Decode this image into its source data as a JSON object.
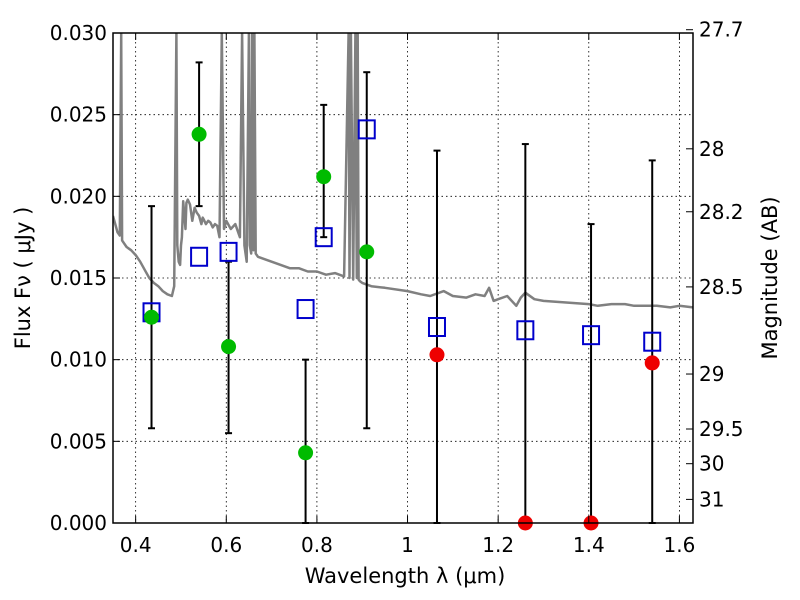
{
  "chart_data": {
    "type": "scatter",
    "title": "",
    "xlabel": "Wavelength  λ (μm)",
    "ylabel": "Flux  Fν  ( μJy )",
    "y2label": "Magnitude (AB)",
    "xlim": [
      0.35,
      1.63
    ],
    "ylim": [
      0.0,
      0.03
    ],
    "grid": true,
    "x_ticks": [
      {
        "value": 0.4,
        "label": "0.4"
      },
      {
        "value": 0.6,
        "label": "0.6"
      },
      {
        "value": 0.8,
        "label": "0.8"
      },
      {
        "value": 1.0,
        "label": "1"
      },
      {
        "value": 1.2,
        "label": "1.2"
      },
      {
        "value": 1.4,
        "label": "1.4"
      },
      {
        "value": 1.6,
        "label": "1.6"
      }
    ],
    "y_ticks": [
      {
        "value": 0.0,
        "label": "0.000"
      },
      {
        "value": 0.005,
        "label": "0.005"
      },
      {
        "value": 0.01,
        "label": "0.010"
      },
      {
        "value": 0.015,
        "label": "0.015"
      },
      {
        "value": 0.02,
        "label": "0.020"
      },
      {
        "value": 0.025,
        "label": "0.025"
      },
      {
        "value": 0.03,
        "label": "0.030"
      }
    ],
    "y2_ticks": [
      {
        "value": 27.7,
        "label": "27.7"
      },
      {
        "value": 28.0,
        "label": "28"
      },
      {
        "value": 28.2,
        "label": "28.2"
      },
      {
        "value": 28.5,
        "label": "28.5"
      },
      {
        "value": 29.0,
        "label": "29"
      },
      {
        "value": 29.5,
        "label": "29.5"
      },
      {
        "value": 30.0,
        "label": "30"
      },
      {
        "value": 31.0,
        "label": "31"
      }
    ],
    "series": [
      {
        "name": "model_spectrum",
        "kind": "line",
        "color": "#808080",
        "x": [
          0.35,
          0.36,
          0.365,
          0.368,
          0.37,
          0.375,
          0.38,
          0.39,
          0.4,
          0.41,
          0.42,
          0.43,
          0.44,
          0.45,
          0.46,
          0.47,
          0.48,
          0.485,
          0.49,
          0.492,
          0.495,
          0.498,
          0.5,
          0.502,
          0.505,
          0.51,
          0.512,
          0.515,
          0.52,
          0.525,
          0.53,
          0.535,
          0.54,
          0.545,
          0.548,
          0.55,
          0.555,
          0.56,
          0.565,
          0.57,
          0.575,
          0.58,
          0.585,
          0.59,
          0.595,
          0.6,
          0.61,
          0.62,
          0.63,
          0.635,
          0.64,
          0.645,
          0.65,
          0.652,
          0.655,
          0.657,
          0.66,
          0.662,
          0.665,
          0.67,
          0.68,
          0.7,
          0.72,
          0.74,
          0.76,
          0.78,
          0.8,
          0.82,
          0.84,
          0.86,
          0.87,
          0.872,
          0.875,
          0.88,
          0.885,
          0.888,
          0.89,
          0.892,
          0.895,
          0.9,
          0.92,
          0.95,
          1.0,
          1.03,
          1.05,
          1.08,
          1.1,
          1.13,
          1.15,
          1.17,
          1.18,
          1.19,
          1.2,
          1.22,
          1.24,
          1.25,
          1.26,
          1.28,
          1.3,
          1.35,
          1.4,
          1.42,
          1.45,
          1.48,
          1.5,
          1.55,
          1.58,
          1.6,
          1.63
        ],
        "y": [
          0.0188,
          0.0178,
          0.0176,
          0.03,
          0.0173,
          0.0171,
          0.0169,
          0.0167,
          0.0164,
          0.016,
          0.0155,
          0.015,
          0.0147,
          0.0145,
          0.0142,
          0.014,
          0.0139,
          0.0145,
          0.03,
          0.017,
          0.016,
          0.0158,
          0.017,
          0.0175,
          0.0197,
          0.018,
          0.0196,
          0.0198,
          0.0195,
          0.0185,
          0.0193,
          0.019,
          0.0188,
          0.0183,
          0.0187,
          0.0186,
          0.0183,
          0.0185,
          0.0184,
          0.0181,
          0.0183,
          0.0182,
          0.0175,
          0.03,
          0.018,
          0.0185,
          0.018,
          0.0183,
          0.0175,
          0.03,
          0.017,
          0.016,
          0.03,
          0.017,
          0.0165,
          0.03,
          0.0167,
          0.03,
          0.0165,
          0.0163,
          0.0162,
          0.016,
          0.0158,
          0.0156,
          0.0156,
          0.0154,
          0.0154,
          0.0152,
          0.0153,
          0.0151,
          0.03,
          0.015,
          0.03,
          0.0149,
          0.03,
          0.015,
          0.03,
          0.0149,
          0.0148,
          0.0147,
          0.0145,
          0.0144,
          0.0142,
          0.014,
          0.0139,
          0.0142,
          0.0139,
          0.0138,
          0.014,
          0.0139,
          0.0144,
          0.0136,
          0.0137,
          0.0139,
          0.0133,
          0.0138,
          0.0141,
          0.0137,
          0.0136,
          0.0135,
          0.0134,
          0.0133,
          0.0134,
          0.0134,
          0.0133,
          0.0133,
          0.0132,
          0.0133,
          0.0132
        ]
      },
      {
        "name": "model_photometry",
        "kind": "scatter",
        "marker": "open-square",
        "color": "#0000cc",
        "x": [
          0.435,
          0.54,
          0.605,
          0.775,
          0.815,
          0.91,
          1.065,
          1.26,
          1.405,
          1.54
        ],
        "y": [
          0.0129,
          0.0163,
          0.0166,
          0.0131,
          0.0175,
          0.0241,
          0.012,
          0.0118,
          0.0115,
          0.0111
        ]
      },
      {
        "name": "observed_detections",
        "kind": "scatter",
        "marker": "filled-circle",
        "color": "#00bb00",
        "x": [
          0.435,
          0.54,
          0.605,
          0.775,
          0.815,
          0.91
        ],
        "y": [
          0.0126,
          0.0238,
          0.0108,
          0.0043,
          0.0212,
          0.0166
        ],
        "yerr_low": [
          0.0058,
          0.0194,
          0.0055,
          0.0,
          0.0175,
          0.0058
        ],
        "yerr_high": [
          0.0194,
          0.0282,
          0.016,
          0.01,
          0.0256,
          0.0276
        ]
      },
      {
        "name": "observed_nondetections",
        "kind": "scatter",
        "marker": "filled-circle",
        "color": "#ee0000",
        "x": [
          1.065,
          1.26,
          1.405,
          1.54
        ],
        "y": [
          0.0103,
          0.0,
          0.0,
          0.0098
        ],
        "yerr_low": [
          0.0,
          0.0,
          0.0,
          0.0
        ],
        "yerr_high": [
          0.0228,
          0.0232,
          0.0183,
          0.0222
        ]
      }
    ]
  }
}
